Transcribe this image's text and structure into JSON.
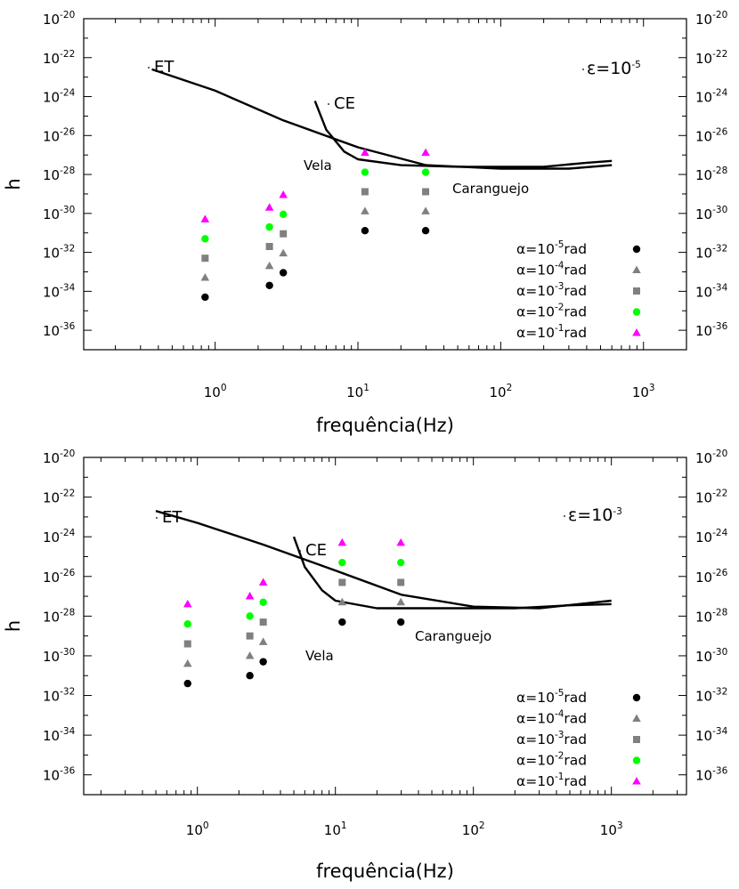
{
  "chart_data": [
    {
      "type": "scatter",
      "xlabel": "frequência(Hz)",
      "ylabel": "h",
      "xscale": "log",
      "yscale": "log",
      "xlim": [
        0.12,
        2000
      ],
      "ylim": [
        1e-37,
        1e-20
      ],
      "x_ticks": [
        {
          "base": "10",
          "exp": "0"
        },
        {
          "base": "10",
          "exp": "1"
        },
        {
          "base": "10",
          "exp": "2"
        },
        {
          "base": "10",
          "exp": "3"
        }
      ],
      "y_ticks": [
        {
          "base": "10",
          "exp": "-20"
        },
        {
          "base": "10",
          "exp": "-22"
        },
        {
          "base": "10",
          "exp": "-24"
        },
        {
          "base": "10",
          "exp": "-26"
        },
        {
          "base": "10",
          "exp": "-28"
        },
        {
          "base": "10",
          "exp": "-30"
        },
        {
          "base": "10",
          "exp": "-32"
        },
        {
          "base": "10",
          "exp": "-34"
        },
        {
          "base": "10",
          "exp": "-36"
        }
      ],
      "epsilon_label": {
        "text": "ε=10",
        "exp": "-5"
      },
      "curve_labels": {
        "et": "ET",
        "ce": "CE"
      },
      "source_labels": {
        "vela": "Vela",
        "crab": "Caranguejo"
      },
      "curves": [
        {
          "name": "ET",
          "x": [
            0.36,
            1,
            3,
            10,
            30,
            100,
            300,
            600
          ],
          "y": [
            2.5e-23,
            2e-24,
            6e-26,
            2.5e-27,
            3e-28,
            2e-28,
            2e-28,
            3e-28
          ]
        },
        {
          "name": "CE",
          "x": [
            5,
            6,
            8,
            10,
            20,
            50,
            100,
            200,
            400,
            600
          ],
          "y": [
            6e-25,
            2e-26,
            1.5e-27,
            6e-28,
            3e-28,
            2.5e-28,
            2.5e-28,
            2.5e-28,
            4e-28,
            5e-28
          ]
        }
      ],
      "series": [
        {
          "name": "α=10",
          "exp": "-5",
          "unit": "rad",
          "color": "#000000",
          "marker": "circle",
          "x": [
            0.85,
            2.4,
            3.0,
            11.2,
            29.8
          ],
          "y": [
            5e-35,
            2e-34,
            9e-34,
            1.3e-31,
            1.3e-31
          ]
        },
        {
          "name": "α=10",
          "exp": "-4",
          "unit": "rad",
          "color": "#808080",
          "marker": "triangle",
          "x": [
            0.85,
            2.4,
            3.0,
            11.2,
            29.8
          ],
          "y": [
            5e-34,
            2e-33,
            9e-33,
            1.3e-30,
            1.3e-30
          ]
        },
        {
          "name": "α=10",
          "exp": "-3",
          "unit": "rad",
          "color": "#808080",
          "marker": "square",
          "x": [
            0.85,
            2.4,
            3.0,
            11.2,
            29.8
          ],
          "y": [
            5e-33,
            2e-32,
            9e-32,
            1.3e-29,
            1.3e-29
          ]
        },
        {
          "name": "α=10",
          "exp": "-2",
          "unit": "rad",
          "color": "#00ff00",
          "marker": "circle",
          "x": [
            0.85,
            2.4,
            3.0,
            11.2,
            29.8
          ],
          "y": [
            5e-32,
            2e-31,
            9e-31,
            1.3e-28,
            1.3e-28
          ]
        },
        {
          "name": "α=10",
          "exp": "-1",
          "unit": "rad",
          "color": "#ff00ff",
          "marker": "triangle",
          "x": [
            0.85,
            2.4,
            3.0,
            11.2,
            29.8
          ],
          "y": [
            5e-31,
            2e-30,
            9e-30,
            1.3e-27,
            1.3e-27
          ]
        }
      ],
      "legend_position": "bottom-right",
      "grid": false
    },
    {
      "type": "scatter",
      "xlabel": "frequência(Hz)",
      "ylabel": "h",
      "xscale": "log",
      "yscale": "log",
      "xlim": [
        0.15,
        3500
      ],
      "ylim": [
        1e-37,
        1e-20
      ],
      "x_ticks": [
        {
          "base": "10",
          "exp": "0"
        },
        {
          "base": "10",
          "exp": "1"
        },
        {
          "base": "10",
          "exp": "2"
        },
        {
          "base": "10",
          "exp": "3"
        }
      ],
      "y_ticks": [
        {
          "base": "10",
          "exp": "-20"
        },
        {
          "base": "10",
          "exp": "-22"
        },
        {
          "base": "10",
          "exp": "-24"
        },
        {
          "base": "10",
          "exp": "-26"
        },
        {
          "base": "10",
          "exp": "-28"
        },
        {
          "base": "10",
          "exp": "-30"
        },
        {
          "base": "10",
          "exp": "-32"
        },
        {
          "base": "10",
          "exp": "-34"
        },
        {
          "base": "10",
          "exp": "-36"
        }
      ],
      "epsilon_label": {
        "text": "ε=10",
        "exp": "-3"
      },
      "curve_labels": {
        "et": "ET",
        "ce": "CE"
      },
      "source_labels": {
        "vela": "Vela",
        "crab": "Caranguejo"
      },
      "curves": [
        {
          "name": "ET",
          "x": [
            0.5,
            1,
            3,
            10,
            30,
            100,
            300,
            1000
          ],
          "y": [
            2e-23,
            5e-24,
            4e-25,
            2e-26,
            1.2e-27,
            3e-28,
            2.5e-28,
            6e-28
          ]
        },
        {
          "name": "CE",
          "x": [
            5,
            6,
            8,
            10,
            20,
            50,
            100,
            200,
            500,
            1000
          ],
          "y": [
            1e-24,
            3e-26,
            2e-27,
            6e-28,
            2.5e-28,
            2.5e-28,
            2.5e-28,
            2.5e-28,
            3.5e-28,
            4e-28
          ]
        }
      ],
      "series": [
        {
          "name": "α=10",
          "exp": "-5",
          "unit": "rad",
          "color": "#000000",
          "marker": "circle",
          "x": [
            0.85,
            2.4,
            3.0,
            11.2,
            29.8
          ],
          "y": [
            4e-32,
            1e-31,
            5e-31,
            5e-29,
            5e-29
          ]
        },
        {
          "name": "α=10",
          "exp": "-4",
          "unit": "rad",
          "color": "#808080",
          "marker": "triangle",
          "x": [
            0.85,
            2.4,
            3.0,
            11.2,
            29.8
          ],
          "y": [
            4e-31,
            1e-30,
            5e-30,
            5e-28,
            5e-28
          ]
        },
        {
          "name": "α=10",
          "exp": "-3",
          "unit": "rad",
          "color": "#808080",
          "marker": "square",
          "x": [
            0.85,
            2.4,
            3.0,
            11.2,
            29.8
          ],
          "y": [
            4e-30,
            1e-29,
            5e-29,
            5e-27,
            5e-27
          ]
        },
        {
          "name": "α=10",
          "exp": "-2",
          "unit": "rad",
          "color": "#00ff00",
          "marker": "circle",
          "x": [
            0.85,
            2.4,
            3.0,
            11.2,
            29.8
          ],
          "y": [
            4e-29,
            1e-28,
            5e-28,
            5e-26,
            5e-26
          ]
        },
        {
          "name": "α=10",
          "exp": "-1",
          "unit": "rad",
          "color": "#ff00ff",
          "marker": "triangle",
          "x": [
            0.85,
            2.4,
            3.0,
            11.2,
            29.8
          ],
          "y": [
            4e-28,
            1e-27,
            5e-27,
            5e-25,
            5e-25
          ]
        }
      ],
      "legend_position": "bottom-right",
      "grid": false
    }
  ]
}
